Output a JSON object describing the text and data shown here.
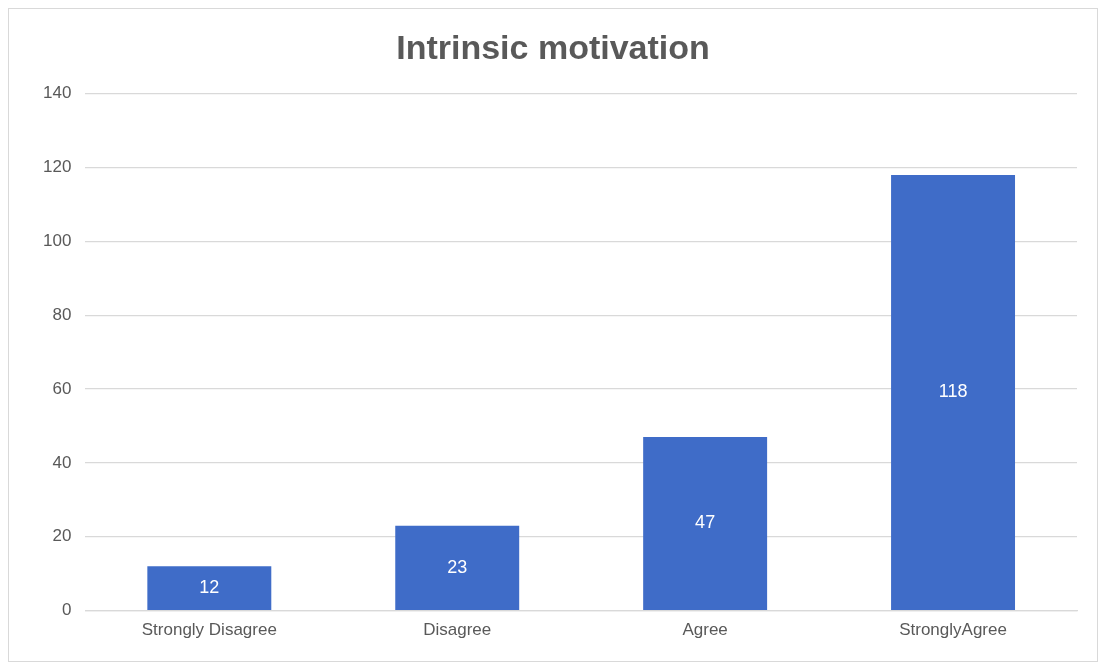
{
  "chart_data": {
    "type": "bar",
    "title": "Intrinsic motivation",
    "categories": [
      "Strongly Disagree",
      "Disagree",
      "Agree",
      "StronglyAgree"
    ],
    "values": [
      12,
      23,
      47,
      118
    ],
    "color": "#3f6cc8",
    "ylim": [
      0,
      140
    ],
    "yticks": [
      0,
      20,
      40,
      60,
      80,
      100,
      120,
      140
    ],
    "grid": "y",
    "data_labels": true
  }
}
